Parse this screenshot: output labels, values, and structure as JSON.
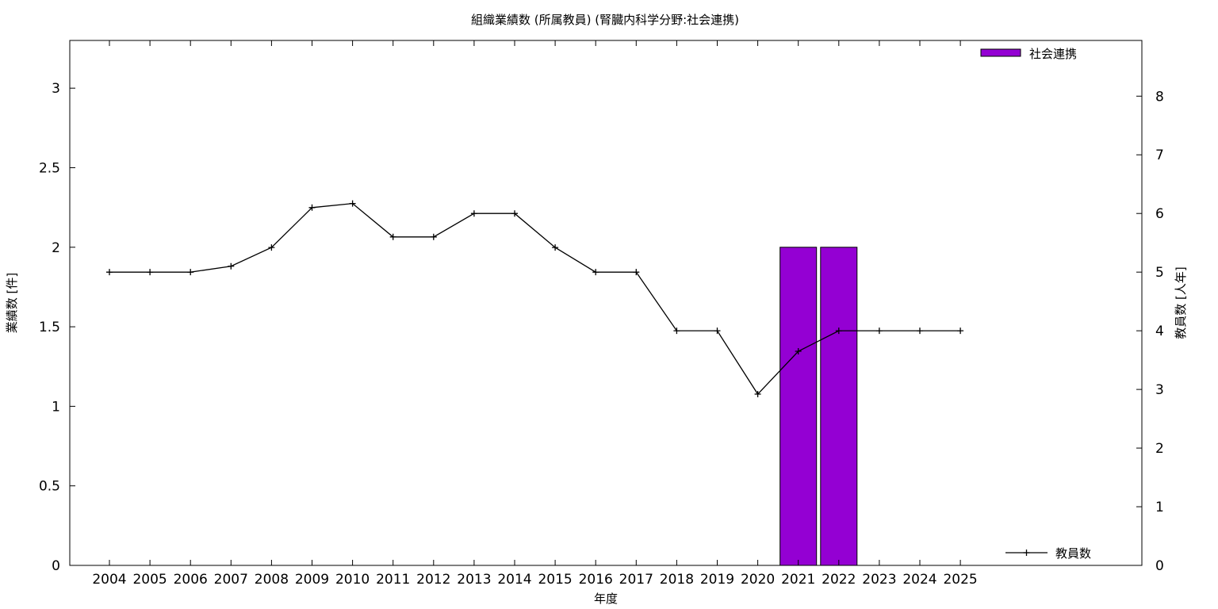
{
  "chart_data": {
    "type": "bar",
    "title": "組織業績数 (所属教員) (腎臓内科学分野:社会連携)",
    "xlabel": "年度",
    "ylabel": "業績数 [件]",
    "y2label": "教員数 [人年]",
    "categories": [
      "2004",
      "2005",
      "2006",
      "2007",
      "2008",
      "2009",
      "2010",
      "2011",
      "2012",
      "2013",
      "2014",
      "2015",
      "2016",
      "2017",
      "2018",
      "2019",
      "2020",
      "2021",
      "2022",
      "2023",
      "2024",
      "2025"
    ],
    "series": [
      {
        "name": "社会連携",
        "type": "bar",
        "axis": "left",
        "color": "#9400d3",
        "values": [
          0,
          0,
          0,
          0,
          0,
          0,
          0,
          0,
          0,
          0,
          0,
          0,
          0,
          0,
          0,
          0,
          0,
          2,
          2,
          0,
          0,
          0
        ]
      },
      {
        "name": "教員数",
        "type": "line",
        "axis": "right",
        "color": "#000000",
        "values": [
          5,
          5,
          5,
          5.1,
          5.42,
          6.1,
          6.17,
          5.6,
          5.6,
          6,
          6,
          5.42,
          5,
          5,
          4,
          4,
          2.92,
          3.65,
          4,
          4,
          4,
          4
        ]
      }
    ],
    "ylim": [
      0,
      3.3
    ],
    "yticks": [
      "0",
      "0.5",
      "1",
      "1.5",
      "2",
      "2.5",
      "3"
    ],
    "y2lim": [
      0,
      8.95
    ],
    "y2ticks": [
      "0",
      "1",
      "2",
      "3",
      "4",
      "5",
      "6",
      "7",
      "8"
    ],
    "grid": false,
    "legend_positions": {
      "bars": "top-right",
      "line": "bottom-right"
    }
  }
}
